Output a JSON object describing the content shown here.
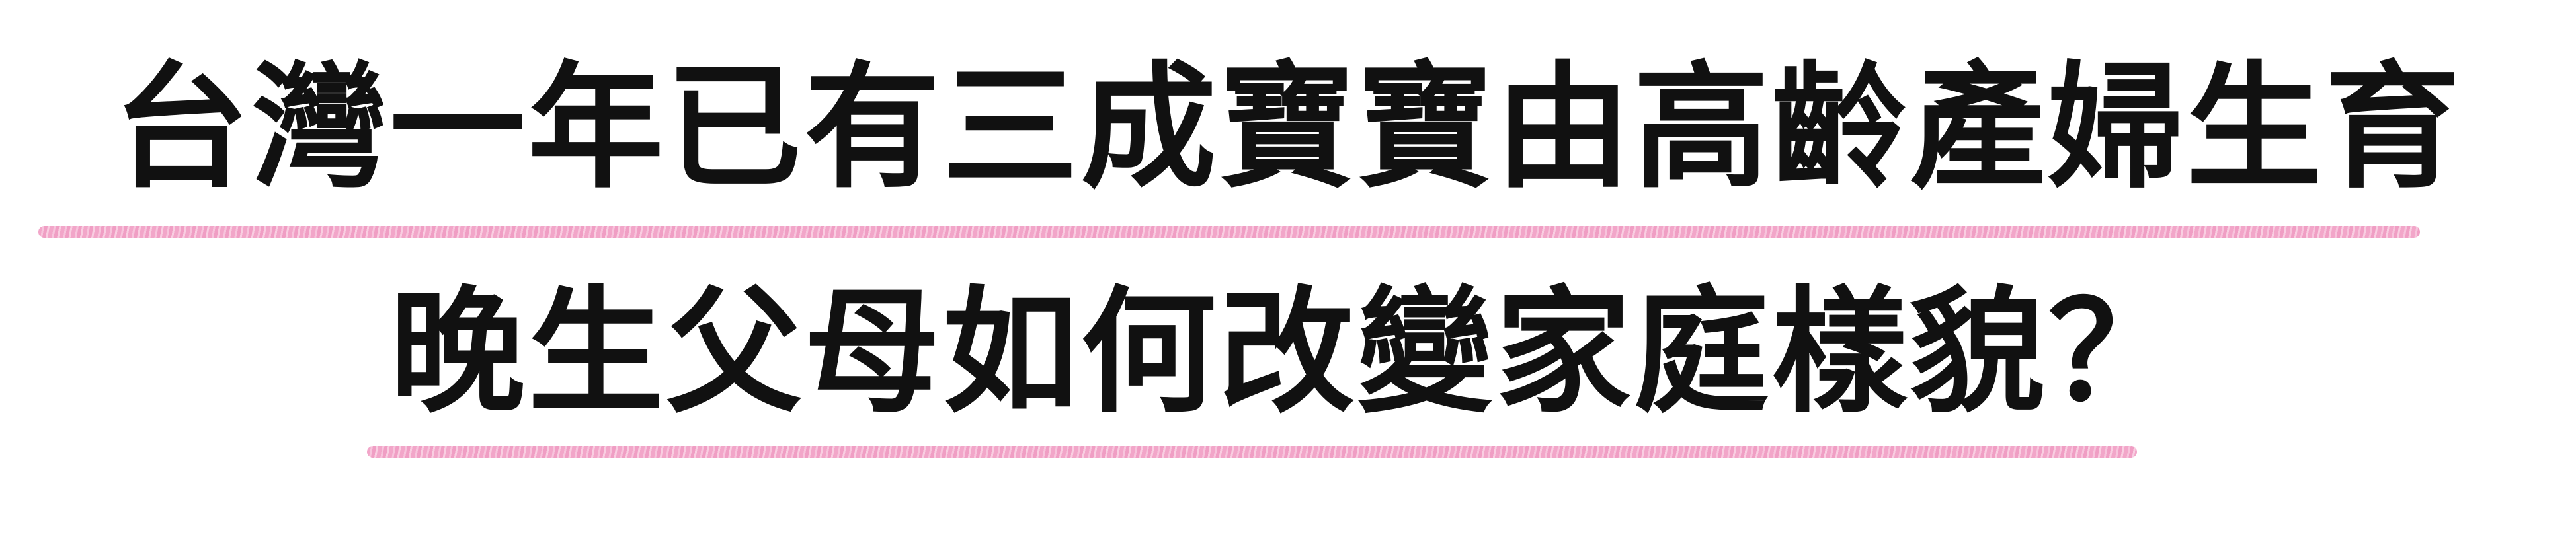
{
  "title": {
    "line1": "台灣一年已有三成寶寶由高齡產婦生育",
    "line2": "晚生父母如何改變家庭樣貌？"
  },
  "colors": {
    "text": "#111111",
    "underline": "#f09cc3",
    "background": "#ffffff"
  }
}
